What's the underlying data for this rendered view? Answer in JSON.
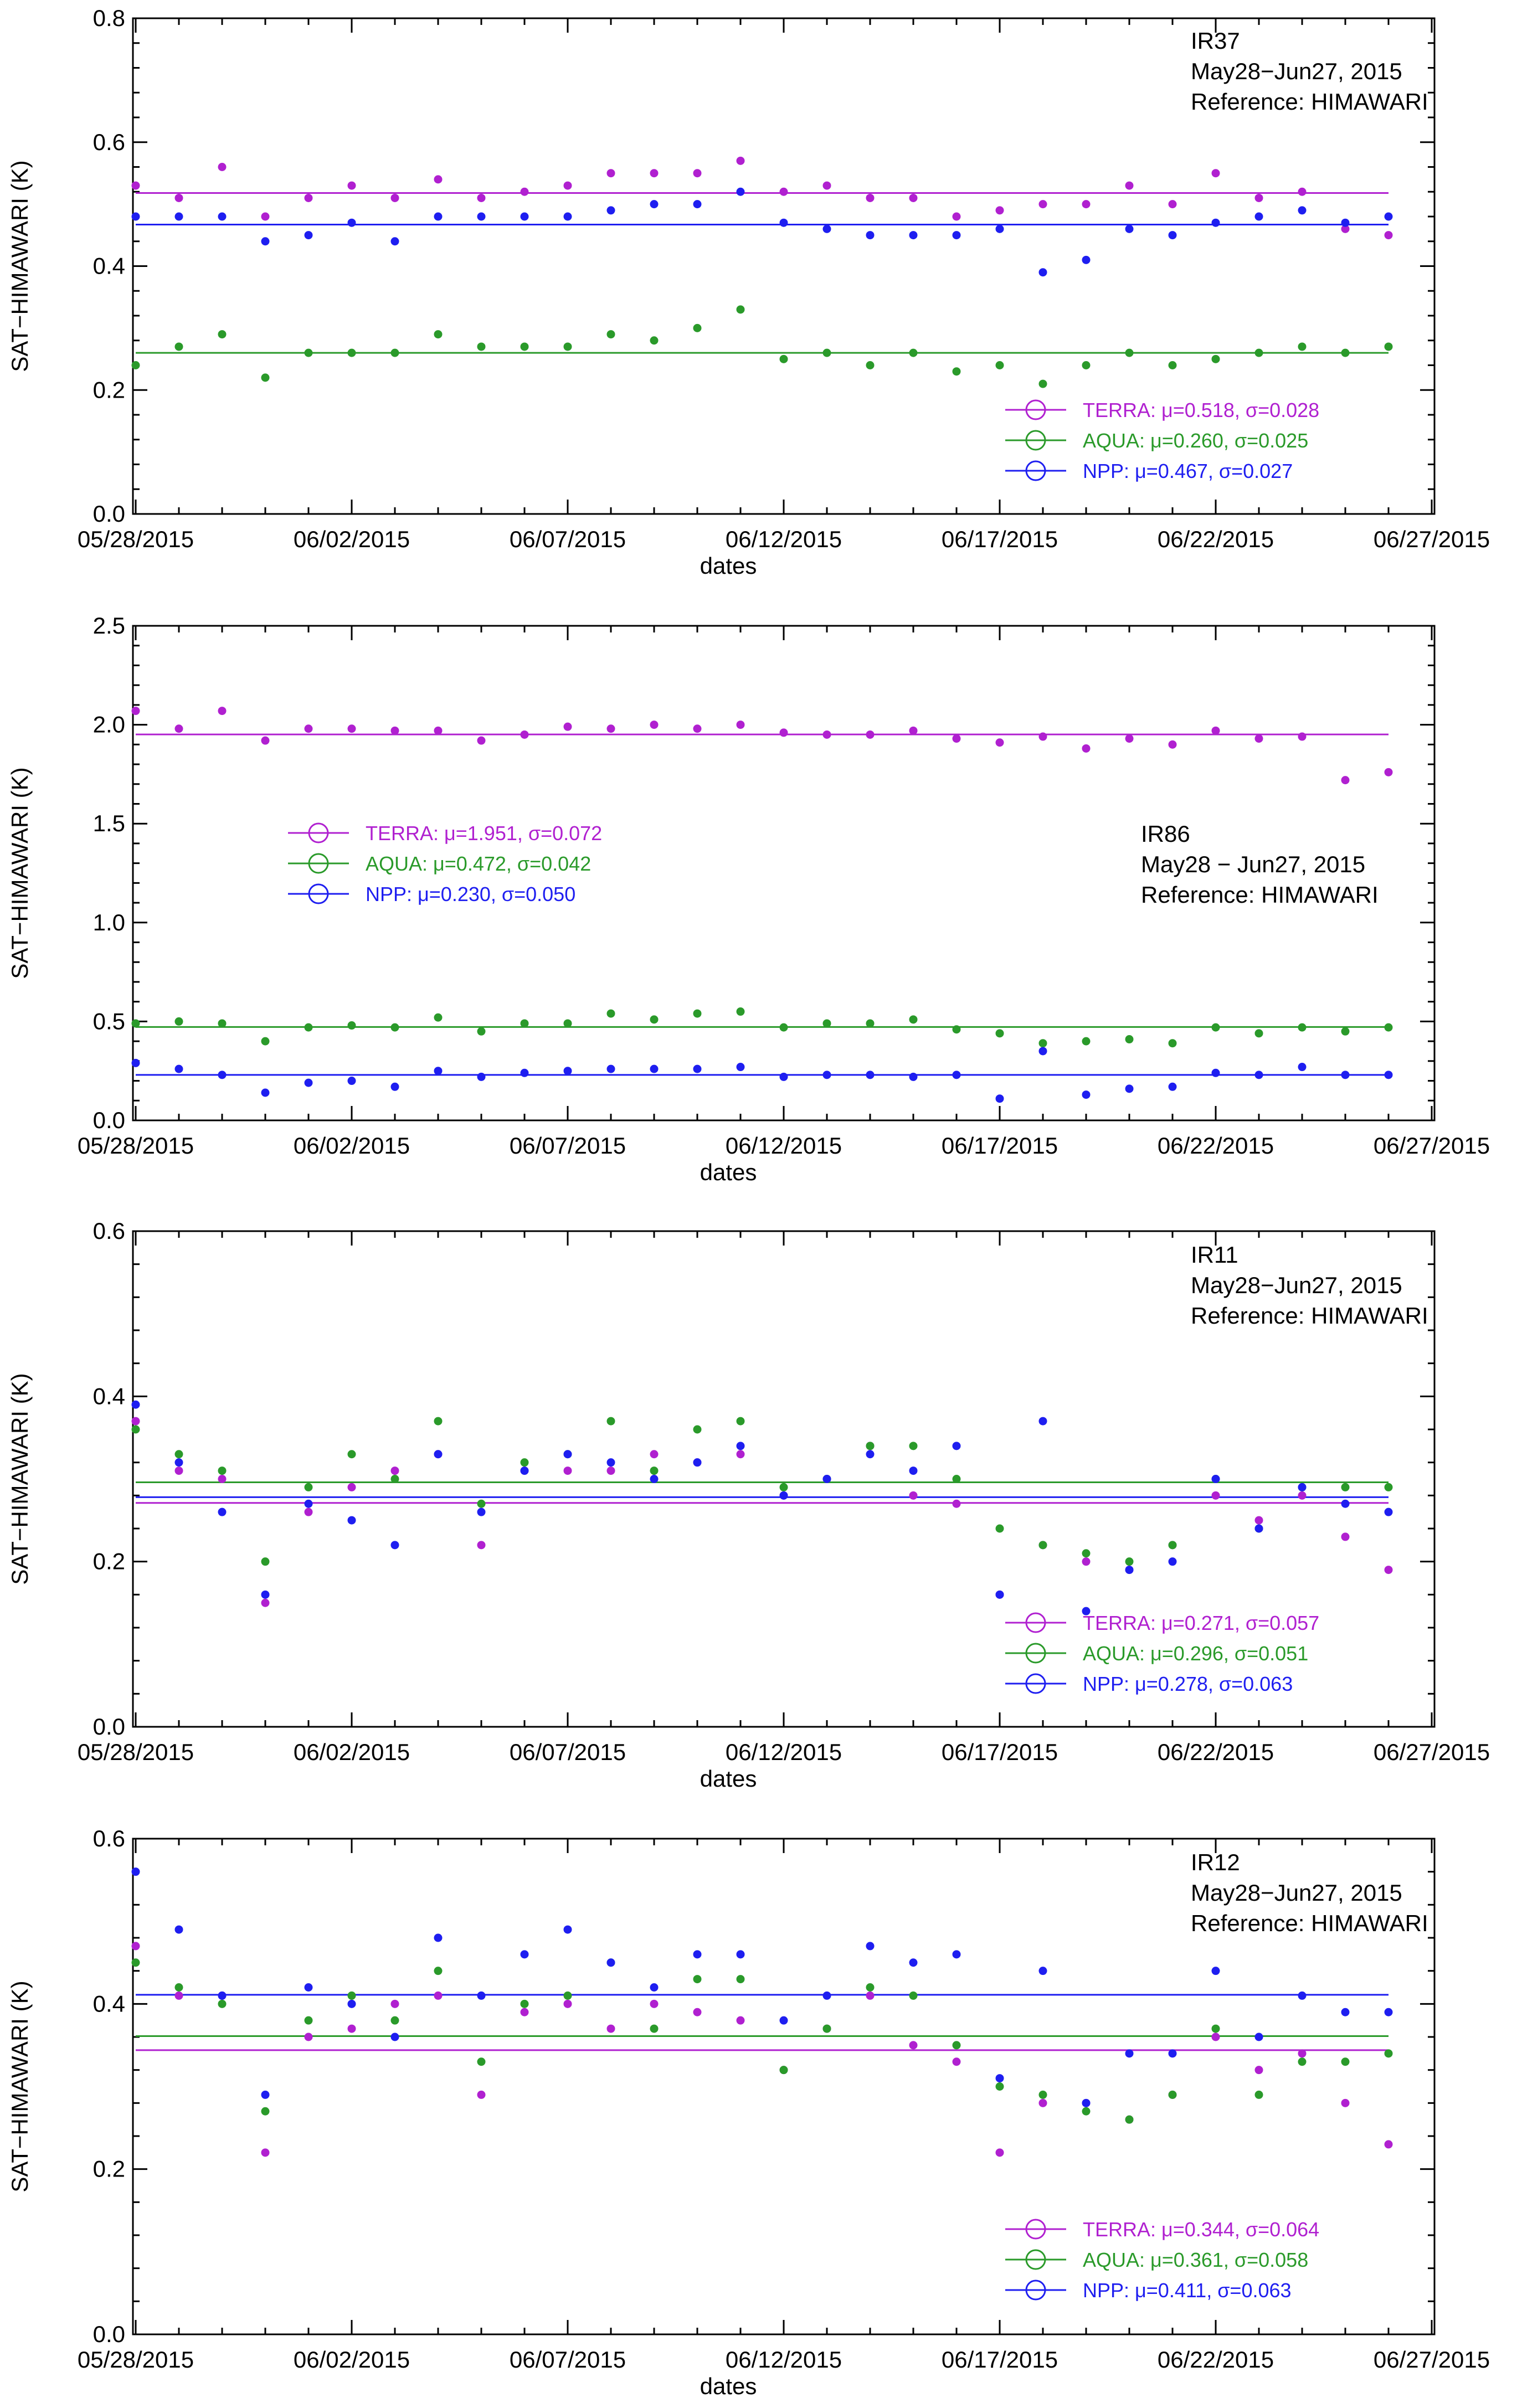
{
  "figure": {
    "background": "#ffffff",
    "axis_color": "#000000"
  },
  "shared": {
    "x_tick_labels": [
      "05/28/2015",
      "06/02/2015",
      "06/07/2015",
      "06/12/2015",
      "06/17/2015",
      "06/22/2015",
      "06/27/2015"
    ],
    "xlabel": "dates",
    "ylabel": "SAT−HIMAWARI (K)"
  },
  "colors": {
    "TERRA": "#b020d0",
    "AQUA": "#2a9a2a",
    "NPP": "#1e1ef0"
  },
  "chart_data": [
    {
      "type": "scatter",
      "title": "IR37",
      "annotation": [
        "IR37",
        "May28−Jun27, 2015",
        "Reference:  HIMAWARI"
      ],
      "annotation_position": "top-right",
      "legend_position": "bottom-right",
      "xlabel": "dates",
      "ylabel": "SAT−HIMAWARI (K)",
      "x_range_days": [
        0,
        30
      ],
      "ylim": [
        0.0,
        0.8
      ],
      "y_ticks": [
        0.0,
        0.2,
        0.4,
        0.6,
        0.8
      ],
      "y_tick_labels": [
        "0.0",
        "0.2",
        "0.4",
        "0.6",
        "0.8"
      ],
      "x_tick_labels": [
        "05/28/2015",
        "06/02/2015",
        "06/07/2015",
        "06/12/2015",
        "06/17/2015",
        "06/22/2015",
        "06/27/2015"
      ],
      "x_days": [
        0,
        1,
        2,
        3,
        4,
        5,
        6,
        7,
        8,
        9,
        10,
        11,
        12,
        13,
        14,
        15,
        16,
        17,
        18,
        19,
        20,
        21,
        22,
        23,
        24,
        25,
        26,
        27,
        28,
        29
      ],
      "series": [
        {
          "name": "TERRA",
          "mean": 0.518,
          "sigma": 0.028,
          "legend": "TERRA: μ=0.518, σ=0.028",
          "values": [
            0.53,
            0.51,
            0.56,
            0.48,
            0.51,
            0.53,
            0.51,
            0.54,
            0.51,
            0.52,
            0.53,
            0.55,
            0.55,
            0.55,
            0.57,
            0.52,
            0.53,
            0.51,
            0.51,
            0.48,
            0.49,
            0.5,
            0.5,
            0.53,
            0.5,
            0.55,
            0.51,
            0.52,
            0.46,
            0.45
          ]
        },
        {
          "name": "AQUA",
          "mean": 0.26,
          "sigma": 0.025,
          "legend": "AQUA: μ=0.260, σ=0.025",
          "values": [
            0.24,
            0.27,
            0.29,
            0.22,
            0.26,
            0.26,
            0.26,
            0.29,
            0.27,
            0.27,
            0.27,
            0.29,
            0.28,
            0.3,
            0.33,
            0.25,
            0.26,
            0.24,
            0.26,
            0.23,
            0.24,
            0.21,
            0.24,
            0.26,
            0.24,
            0.25,
            0.26,
            0.27,
            0.26,
            0.27
          ]
        },
        {
          "name": "NPP",
          "mean": 0.467,
          "sigma": 0.027,
          "legend": "NPP: μ=0.467, σ=0.027",
          "values": [
            0.48,
            0.48,
            0.48,
            0.44,
            0.45,
            0.47,
            0.44,
            0.48,
            0.48,
            0.48,
            0.48,
            0.49,
            0.5,
            0.5,
            0.52,
            0.47,
            0.46,
            0.45,
            0.45,
            0.45,
            0.46,
            0.39,
            0.41,
            0.46,
            0.45,
            0.47,
            0.48,
            0.49,
            0.47,
            0.48
          ]
        }
      ]
    },
    {
      "type": "scatter",
      "title": "IR86",
      "annotation": [
        "IR86",
        "May28  − Jun27, 2015",
        "Reference:  HIMAWARI"
      ],
      "annotation_position": "middle-right",
      "legend_position": "middle-left",
      "xlabel": "dates",
      "ylabel": "SAT−HIMAWARI (K)",
      "x_range_days": [
        0,
        30
      ],
      "ylim": [
        0.0,
        2.5
      ],
      "y_ticks": [
        0.0,
        0.5,
        1.0,
        1.5,
        2.0,
        2.5
      ],
      "y_tick_labels": [
        "0.0",
        "0.5",
        "1.0",
        "1.5",
        "2.0",
        "2.5"
      ],
      "x_tick_labels": [
        "05/28/2015",
        "06/02/2015",
        "06/07/2015",
        "06/12/2015",
        "06/17/2015",
        "06/22/2015",
        "06/27/2015"
      ],
      "x_days": [
        0,
        1,
        2,
        3,
        4,
        5,
        6,
        7,
        8,
        9,
        10,
        11,
        12,
        13,
        14,
        15,
        16,
        17,
        18,
        19,
        20,
        21,
        22,
        23,
        24,
        25,
        26,
        27,
        28,
        29
      ],
      "series": [
        {
          "name": "TERRA",
          "mean": 1.951,
          "sigma": 0.072,
          "legend": "TERRA: μ=1.951, σ=0.072",
          "values": [
            2.07,
            1.98,
            2.07,
            1.92,
            1.98,
            1.98,
            1.97,
            1.97,
            1.92,
            1.95,
            1.99,
            1.98,
            2.0,
            1.98,
            2.0,
            1.96,
            1.95,
            1.95,
            1.97,
            1.93,
            1.91,
            1.94,
            1.88,
            1.93,
            1.9,
            1.97,
            1.93,
            1.94,
            1.72,
            1.76
          ]
        },
        {
          "name": "AQUA",
          "mean": 0.472,
          "sigma": 0.042,
          "legend": "AQUA: μ=0.472, σ=0.042",
          "values": [
            0.49,
            0.5,
            0.49,
            0.4,
            0.47,
            0.48,
            0.47,
            0.52,
            0.45,
            0.49,
            0.49,
            0.54,
            0.51,
            0.54,
            0.55,
            0.47,
            0.49,
            0.49,
            0.51,
            0.46,
            0.44,
            0.39,
            0.4,
            0.41,
            0.39,
            0.47,
            0.44,
            0.47,
            0.45,
            0.47
          ]
        },
        {
          "name": "NPP",
          "mean": 0.23,
          "sigma": 0.05,
          "legend": "NPP: μ=0.230, σ=0.050",
          "values": [
            0.29,
            0.26,
            0.23,
            0.14,
            0.19,
            0.2,
            0.17,
            0.25,
            0.22,
            0.24,
            0.25,
            0.26,
            0.26,
            0.26,
            0.27,
            0.22,
            0.23,
            0.23,
            0.22,
            0.23,
            0.11,
            0.35,
            0.13,
            0.16,
            0.17,
            0.24,
            0.23,
            0.27,
            0.23,
            0.23
          ]
        }
      ]
    },
    {
      "type": "scatter",
      "title": "IR11",
      "annotation": [
        "IR11",
        "May28−Jun27, 2015",
        "Reference:  HIMAWARI"
      ],
      "annotation_position": "top-right",
      "legend_position": "bottom-right",
      "xlabel": "dates",
      "ylabel": "SAT−HIMAWARI (K)",
      "x_range_days": [
        0,
        30
      ],
      "ylim": [
        0.0,
        0.6
      ],
      "y_ticks": [
        0.0,
        0.2,
        0.4,
        0.6
      ],
      "y_tick_labels": [
        "0.0",
        "0.2",
        "0.4",
        "0.6"
      ],
      "x_tick_labels": [
        "05/28/2015",
        "06/02/2015",
        "06/07/2015",
        "06/12/2015",
        "06/17/2015",
        "06/22/2015",
        "06/27/2015"
      ],
      "x_days": [
        0,
        1,
        2,
        3,
        4,
        5,
        6,
        7,
        8,
        9,
        10,
        11,
        12,
        13,
        14,
        15,
        16,
        17,
        18,
        19,
        20,
        21,
        22,
        23,
        24,
        25,
        26,
        27,
        28,
        29
      ],
      "series": [
        {
          "name": "TERRA",
          "mean": 0.271,
          "sigma": 0.057,
          "legend": "TERRA: μ=0.271, σ=0.057",
          "values": [
            0.37,
            0.31,
            0.3,
            0.15,
            0.26,
            0.29,
            0.31,
            0.33,
            0.22,
            0.31,
            0.31,
            0.31,
            0.33,
            0.32,
            0.33,
            0.28,
            0.3,
            0.34,
            0.28,
            0.27,
            0.16,
            0.22,
            0.2,
            0.19,
            0.22,
            0.28,
            0.25,
            0.28,
            0.23,
            0.19
          ]
        },
        {
          "name": "AQUA",
          "mean": 0.296,
          "sigma": 0.051,
          "legend": "AQUA: μ=0.296, σ=0.051",
          "values": [
            0.36,
            0.33,
            0.31,
            0.2,
            0.29,
            0.33,
            0.3,
            0.37,
            0.27,
            0.32,
            0.33,
            0.37,
            0.31,
            0.36,
            0.37,
            0.29,
            0.3,
            0.34,
            0.34,
            0.3,
            0.24,
            0.22,
            0.21,
            0.2,
            0.22,
            0.3,
            0.24,
            0.29,
            0.29,
            0.29
          ]
        },
        {
          "name": "NPP",
          "mean": 0.278,
          "sigma": 0.063,
          "legend": "NPP: μ=0.278, σ=0.063",
          "values": [
            0.39,
            0.32,
            0.26,
            0.16,
            0.27,
            0.25,
            0.22,
            0.33,
            0.26,
            0.31,
            0.33,
            0.32,
            0.3,
            0.32,
            0.34,
            0.28,
            0.3,
            0.33,
            0.31,
            0.34,
            0.16,
            0.37,
            0.14,
            0.19,
            0.2,
            0.3,
            0.24,
            0.29,
            0.27,
            0.26
          ]
        }
      ]
    },
    {
      "type": "scatter",
      "title": "IR12",
      "annotation": [
        "IR12",
        "May28−Jun27, 2015",
        "Reference:  HIMAWARI"
      ],
      "annotation_position": "top-right",
      "legend_position": "bottom-right",
      "xlabel": "dates",
      "ylabel": "SAT−HIMAWARI (K)",
      "x_range_days": [
        0,
        30
      ],
      "ylim": [
        0.0,
        0.6
      ],
      "y_ticks": [
        0.0,
        0.2,
        0.4,
        0.6
      ],
      "y_tick_labels": [
        "0.0",
        "0.2",
        "0.4",
        "0.6"
      ],
      "x_tick_labels": [
        "05/28/2015",
        "06/02/2015",
        "06/07/2015",
        "06/12/2015",
        "06/17/2015",
        "06/22/2015",
        "06/27/2015"
      ],
      "x_days": [
        0,
        1,
        2,
        3,
        4,
        5,
        6,
        7,
        8,
        9,
        10,
        11,
        12,
        13,
        14,
        15,
        16,
        17,
        18,
        19,
        20,
        21,
        22,
        23,
        24,
        25,
        26,
        27,
        28,
        29
      ],
      "series": [
        {
          "name": "TERRA",
          "mean": 0.344,
          "sigma": 0.064,
          "legend": "TERRA: μ=0.344, σ=0.064",
          "values": [
            0.47,
            0.41,
            0.41,
            0.22,
            0.36,
            0.37,
            0.4,
            0.41,
            0.29,
            0.39,
            0.4,
            0.37,
            0.4,
            0.39,
            0.38,
            0.32,
            0.37,
            0.41,
            0.35,
            0.33,
            0.22,
            0.28,
            0.28,
            0.26,
            0.29,
            0.36,
            0.32,
            0.34,
            0.28,
            0.23
          ]
        },
        {
          "name": "AQUA",
          "mean": 0.361,
          "sigma": 0.058,
          "legend": "AQUA: μ=0.361, σ=0.058",
          "values": [
            0.45,
            0.42,
            0.4,
            0.27,
            0.38,
            0.41,
            0.38,
            0.44,
            0.33,
            0.4,
            0.41,
            0.45,
            0.37,
            0.43,
            0.43,
            0.32,
            0.37,
            0.42,
            0.41,
            0.35,
            0.3,
            0.29,
            0.27,
            0.26,
            0.29,
            0.37,
            0.29,
            0.33,
            0.33,
            0.34
          ]
        },
        {
          "name": "NPP",
          "mean": 0.411,
          "sigma": 0.063,
          "legend": "NPP: μ=0.411, σ=0.063",
          "values": [
            0.56,
            0.49,
            0.41,
            0.29,
            0.42,
            0.4,
            0.36,
            0.48,
            0.41,
            0.46,
            0.49,
            0.45,
            0.42,
            0.46,
            0.46,
            0.38,
            0.41,
            0.47,
            0.45,
            0.46,
            0.31,
            0.44,
            0.28,
            0.34,
            0.34,
            0.44,
            0.36,
            0.41,
            0.39,
            0.39
          ]
        }
      ]
    }
  ]
}
